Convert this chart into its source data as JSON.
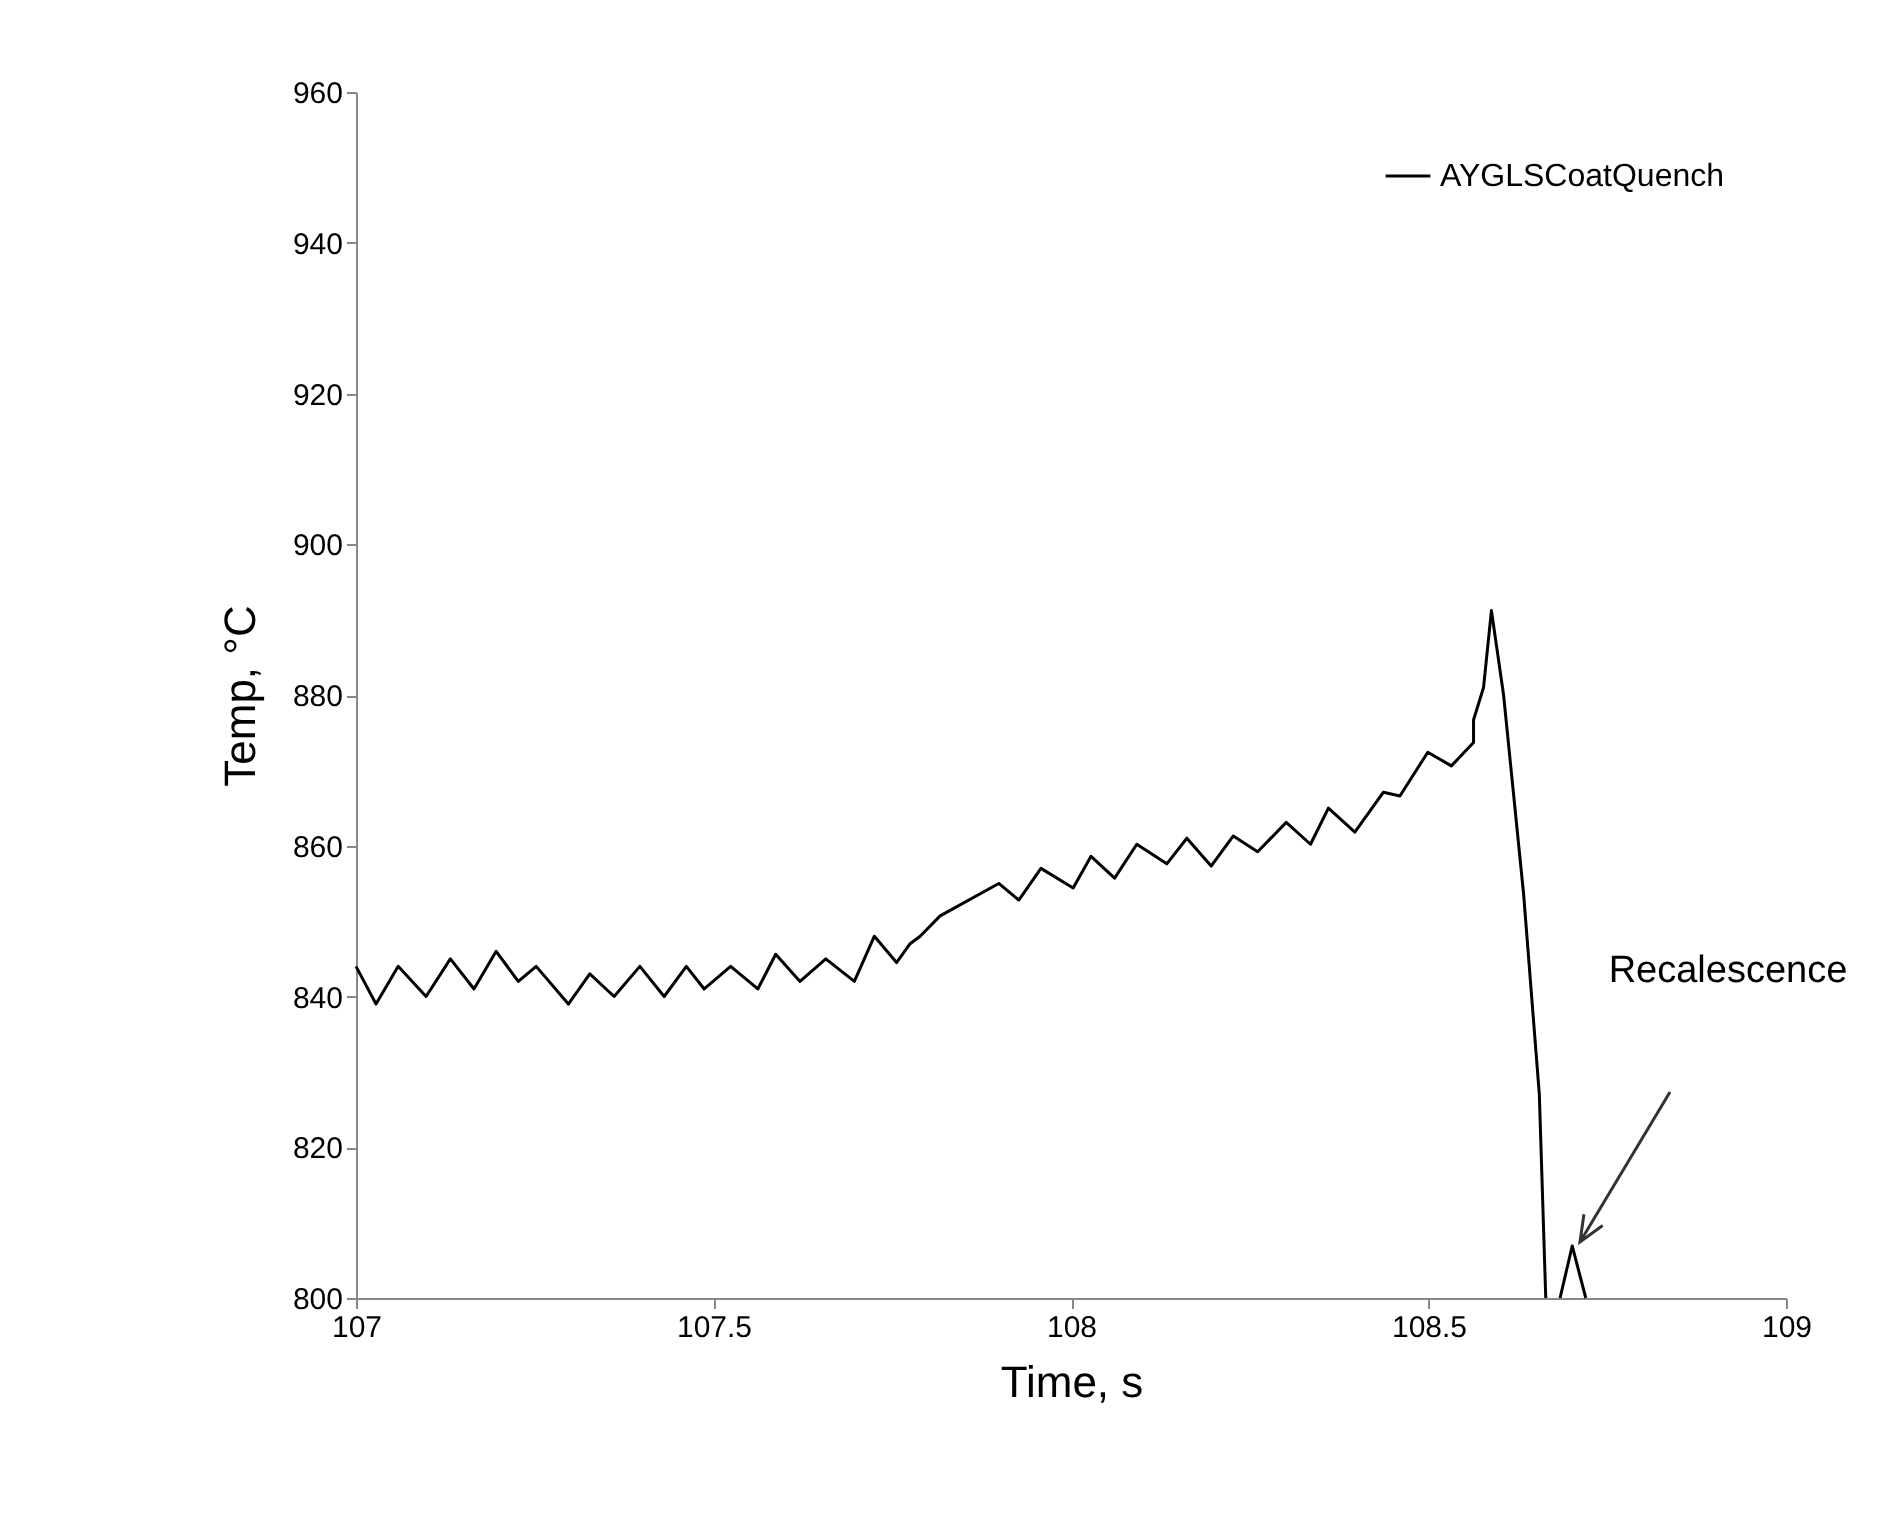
{
  "chart_data": {
    "type": "line",
    "xlabel": "Time, s",
    "ylabel": "Temp, °C",
    "xlim": [
      107,
      109
    ],
    "xticks": [
      107,
      107.5,
      108,
      108.5,
      109
    ],
    "ylim": [
      800,
      960
    ],
    "yticks": [
      800,
      820,
      840,
      860,
      880,
      900,
      920,
      940,
      960
    ],
    "legend": "top right",
    "grid": false,
    "marker": "none",
    "line_style": "solid",
    "annotations": [
      "Recalescence"
    ],
    "series": [
      {
        "name": "AYGLSCoatQuench",
        "color": "#000000",
        "x": [
          107.0,
          107.028,
          107.059,
          107.098,
          107.132,
          107.165,
          107.196,
          107.227,
          107.252,
          107.297,
          107.327,
          107.361,
          107.397,
          107.431,
          107.462,
          107.487,
          107.524,
          107.562,
          107.587,
          107.621,
          107.657,
          107.697,
          107.725,
          107.756,
          107.775,
          107.789,
          107.817,
          107.899,
          107.927,
          107.958,
          108.003,
          108.028,
          108.061,
          108.092,
          108.134,
          108.162,
          108.196,
          108.227,
          108.261,
          108.301,
          108.335,
          108.36,
          108.397,
          108.437,
          108.46,
          108.499,
          108.532,
          108.563,
          108.563,
          108.577,
          108.588,
          108.605,
          108.633,
          108.655,
          108.664,
          null,
          108.684,
          108.701,
          108.72
        ],
        "values": [
          844,
          839,
          844,
          840,
          845,
          841,
          846,
          842,
          844,
          839,
          843,
          840,
          844,
          840,
          844,
          841,
          844,
          841,
          845.6,
          842,
          845,
          842,
          848,
          844.5,
          847,
          848,
          850.7,
          855,
          852.8,
          857,
          854.4,
          858.6,
          855.7,
          860.2,
          857.6,
          861,
          857.3,
          861.3,
          859.2,
          863.1,
          860.2,
          865,
          861.8,
          867.1,
          866.6,
          872.4,
          870.6,
          873.7,
          876.7,
          881,
          891.2,
          880,
          853.6,
          827,
          800,
          null,
          800,
          806.9,
          800
        ]
      }
    ]
  }
}
